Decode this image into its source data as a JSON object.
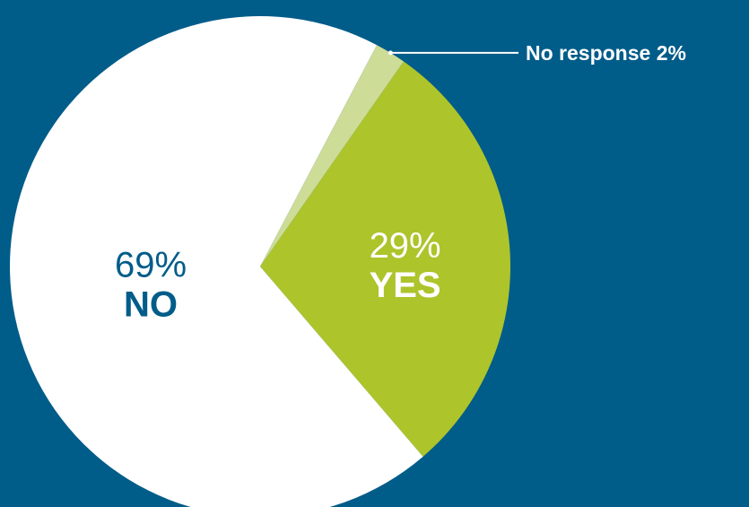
{
  "chart_data": {
    "type": "pie",
    "title": "",
    "slices": [
      {
        "label": "YES",
        "value": 29,
        "value_text": "29%",
        "color": "#adc42b",
        "label_color": "#ffffff"
      },
      {
        "label": "NO",
        "value": 69,
        "value_text": "69%",
        "color": "#ffffff",
        "label_color": "#005c89"
      },
      {
        "label": "No response",
        "value": 2,
        "value_text": "2%",
        "color": "#cddc96",
        "label_color": "#ffffff"
      }
    ],
    "callout": {
      "text": "No response 2%"
    },
    "background_color": "#005c89",
    "legend": "none"
  }
}
